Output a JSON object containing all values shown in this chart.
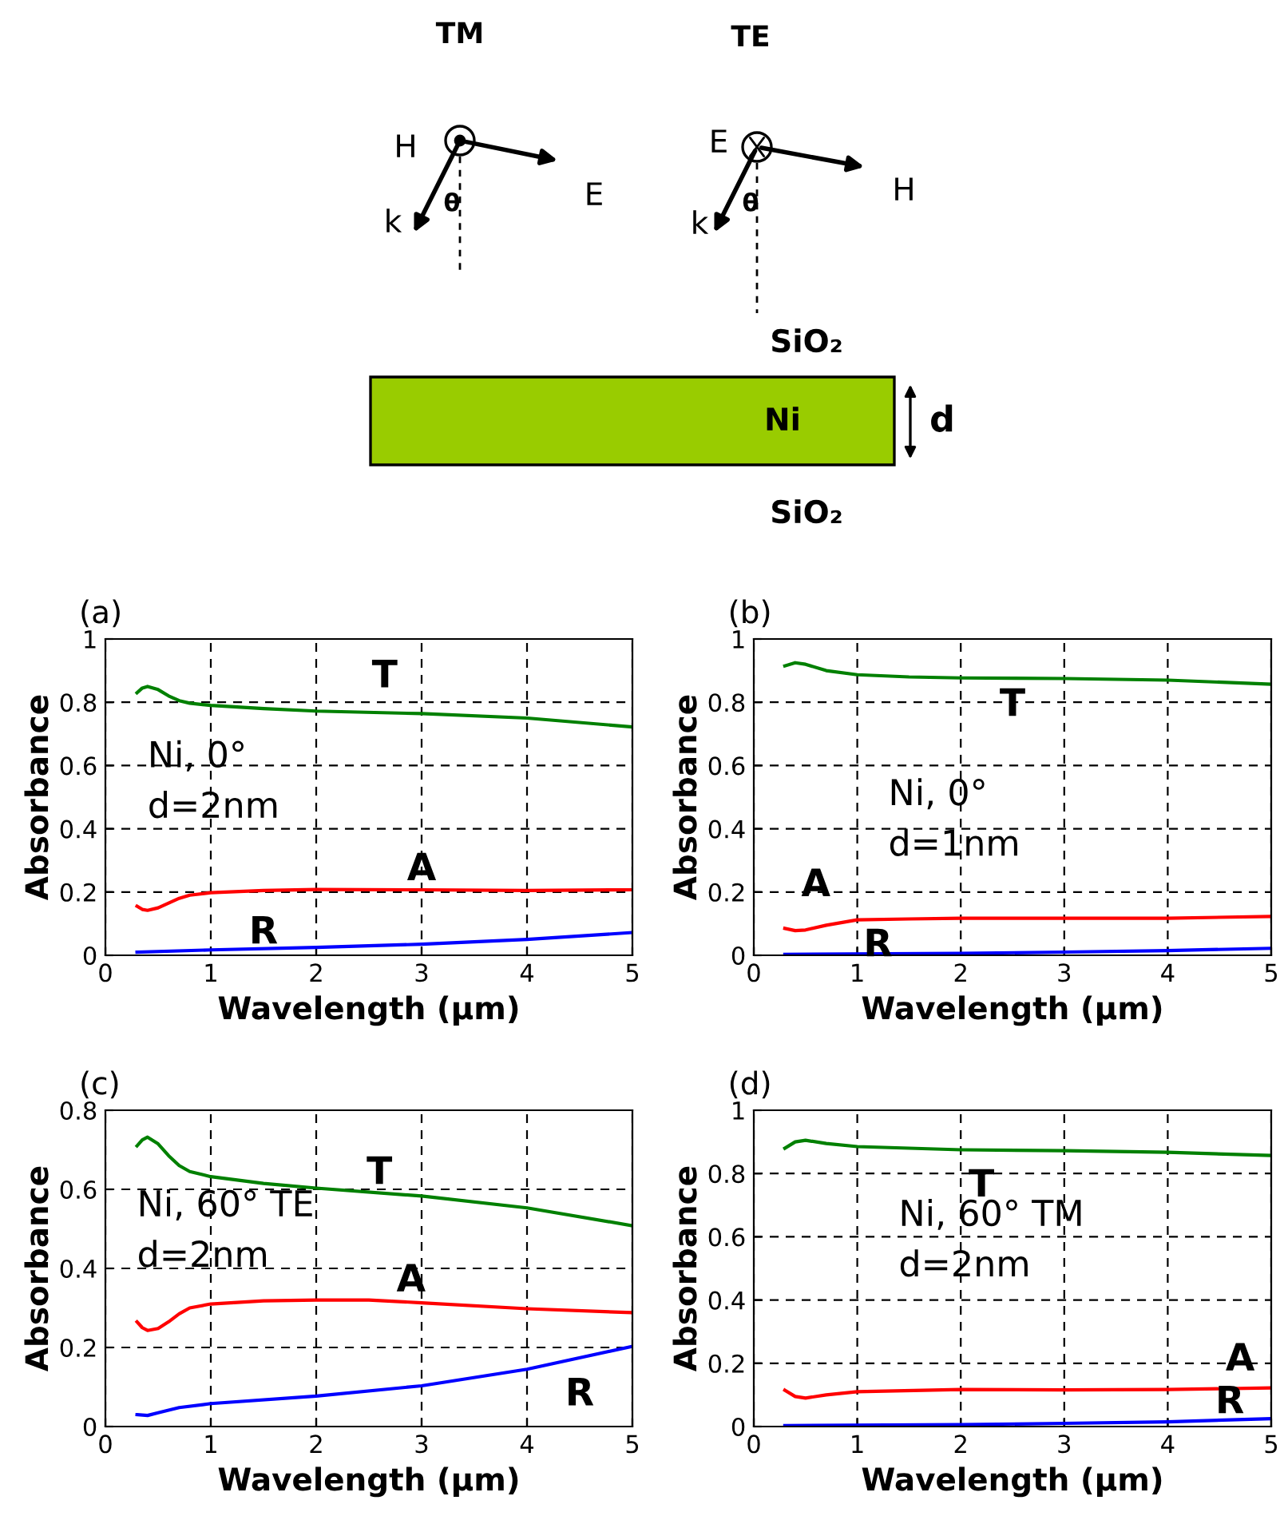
{
  "chart_data": [
    {
      "type": "other",
      "annotations": [
        "TM",
        "H",
        "E",
        "k",
        "θ",
        "TE",
        "E",
        "H",
        "k",
        "θ",
        "SiO₂",
        "Ni",
        "d",
        "SiO₂"
      ]
    },
    {
      "type": "line",
      "title": "(a)",
      "xlabel": "Wavelength (μm)",
      "ylabel": "Absorbance",
      "xlim": [
        0,
        5
      ],
      "ylim": [
        0,
        1
      ],
      "xticks": [
        0,
        1,
        2,
        3,
        4,
        5
      ],
      "yticks": [
        0,
        0.2,
        0.4,
        0.6,
        0.8,
        1
      ],
      "grid": true,
      "series": [
        {
          "name": "T",
          "color": "#008000",
          "x": [
            0.3,
            0.35,
            0.4,
            0.5,
            0.6,
            0.7,
            0.8,
            1,
            1.5,
            2,
            3,
            4,
            5
          ],
          "values": [
            0.83,
            0.845,
            0.85,
            0.84,
            0.82,
            0.805,
            0.797,
            0.79,
            0.78,
            0.772,
            0.764,
            0.75,
            0.722
          ]
        },
        {
          "name": "A",
          "color": "#ff0000",
          "x": [
            0.3,
            0.35,
            0.4,
            0.5,
            0.6,
            0.7,
            0.8,
            1,
            1.5,
            2,
            3,
            4,
            5
          ],
          "values": [
            0.155,
            0.145,
            0.142,
            0.15,
            0.165,
            0.18,
            0.19,
            0.198,
            0.205,
            0.208,
            0.207,
            0.205,
            0.207
          ]
        },
        {
          "name": "R",
          "color": "#0000ff",
          "x": [
            0.3,
            1,
            2,
            3,
            4,
            5
          ],
          "values": [
            0.01,
            0.017,
            0.025,
            0.035,
            0.05,
            0.072
          ]
        }
      ],
      "annotations": [
        "Ni, 0°\nd=2nm"
      ]
    },
    {
      "type": "line",
      "title": "(b)",
      "xlabel": "Wavelength (μm)",
      "ylabel": "Absorbance",
      "xlim": [
        0,
        5
      ],
      "ylim": [
        0,
        1
      ],
      "xticks": [
        0,
        1,
        2,
        3,
        4,
        5
      ],
      "yticks": [
        0,
        0.2,
        0.4,
        0.6,
        0.8,
        1
      ],
      "grid": true,
      "series": [
        {
          "name": "T",
          "color": "#008000",
          "x": [
            0.3,
            0.4,
            0.5,
            0.7,
            1,
            1.5,
            2,
            3,
            4,
            5
          ],
          "values": [
            0.915,
            0.925,
            0.92,
            0.9,
            0.887,
            0.88,
            0.877,
            0.875,
            0.87,
            0.857
          ]
        },
        {
          "name": "A",
          "color": "#ff0000",
          "x": [
            0.3,
            0.4,
            0.5,
            0.7,
            1,
            1.5,
            2,
            3,
            4,
            5
          ],
          "values": [
            0.085,
            0.078,
            0.08,
            0.095,
            0.112,
            0.115,
            0.117,
            0.117,
            0.117,
            0.123
          ]
        },
        {
          "name": "R",
          "color": "#0000ff",
          "x": [
            0.3,
            2,
            3,
            4,
            5
          ],
          "values": [
            0.003,
            0.006,
            0.01,
            0.015,
            0.022
          ]
        }
      ],
      "annotations": [
        "Ni, 0°\nd=1nm"
      ]
    },
    {
      "type": "line",
      "title": "(c)",
      "xlabel": "Wavelength (μm)",
      "ylabel": "Absorbance",
      "xlim": [
        0,
        5
      ],
      "ylim": [
        0,
        0.8
      ],
      "xticks": [
        0,
        1,
        2,
        3,
        4,
        5
      ],
      "yticks": [
        0,
        0.2,
        0.4,
        0.6,
        0.8
      ],
      "grid": true,
      "series": [
        {
          "name": "T",
          "color": "#008000",
          "x": [
            0.3,
            0.35,
            0.4,
            0.5,
            0.6,
            0.7,
            0.8,
            1,
            1.5,
            2,
            3,
            4,
            5
          ],
          "values": [
            0.71,
            0.725,
            0.732,
            0.715,
            0.685,
            0.66,
            0.645,
            0.632,
            0.615,
            0.603,
            0.583,
            0.553,
            0.508
          ]
        },
        {
          "name": "A",
          "color": "#ff0000",
          "x": [
            0.3,
            0.35,
            0.4,
            0.5,
            0.6,
            0.7,
            0.8,
            1,
            1.5,
            2,
            2.5,
            3,
            4,
            5
          ],
          "values": [
            0.265,
            0.25,
            0.243,
            0.248,
            0.265,
            0.285,
            0.3,
            0.31,
            0.318,
            0.32,
            0.32,
            0.313,
            0.298,
            0.288
          ]
        },
        {
          "name": "R",
          "color": "#0000ff",
          "x": [
            0.3,
            0.4,
            0.5,
            0.7,
            1,
            2,
            3,
            4,
            5
          ],
          "values": [
            0.03,
            0.028,
            0.035,
            0.048,
            0.058,
            0.077,
            0.103,
            0.145,
            0.203
          ]
        }
      ],
      "annotations": [
        "Ni, 60° TE\nd=2nm"
      ]
    },
    {
      "type": "line",
      "title": "(d)",
      "xlabel": "Wavelength (μm)",
      "ylabel": "Absorbance",
      "xlim": [
        0,
        5
      ],
      "ylim": [
        0,
        1
      ],
      "xticks": [
        0,
        1,
        2,
        3,
        4,
        5
      ],
      "yticks": [
        0,
        0.2,
        0.4,
        0.6,
        0.8,
        1
      ],
      "grid": true,
      "series": [
        {
          "name": "T",
          "color": "#008000",
          "x": [
            0.3,
            0.4,
            0.5,
            0.7,
            1,
            2,
            3,
            4,
            5
          ],
          "values": [
            0.88,
            0.9,
            0.905,
            0.895,
            0.885,
            0.875,
            0.872,
            0.867,
            0.857
          ]
        },
        {
          "name": "A",
          "color": "#ff0000",
          "x": [
            0.3,
            0.4,
            0.5,
            0.7,
            1,
            2,
            3,
            4,
            5
          ],
          "values": [
            0.115,
            0.095,
            0.09,
            0.1,
            0.11,
            0.117,
            0.116,
            0.117,
            0.122
          ]
        },
        {
          "name": "R",
          "color": "#0000ff",
          "x": [
            0.3,
            2,
            3,
            4,
            5
          ],
          "values": [
            0.003,
            0.006,
            0.01,
            0.015,
            0.025
          ]
        }
      ],
      "annotations": [
        "Ni, 60° TM\nd=2nm"
      ]
    }
  ]
}
